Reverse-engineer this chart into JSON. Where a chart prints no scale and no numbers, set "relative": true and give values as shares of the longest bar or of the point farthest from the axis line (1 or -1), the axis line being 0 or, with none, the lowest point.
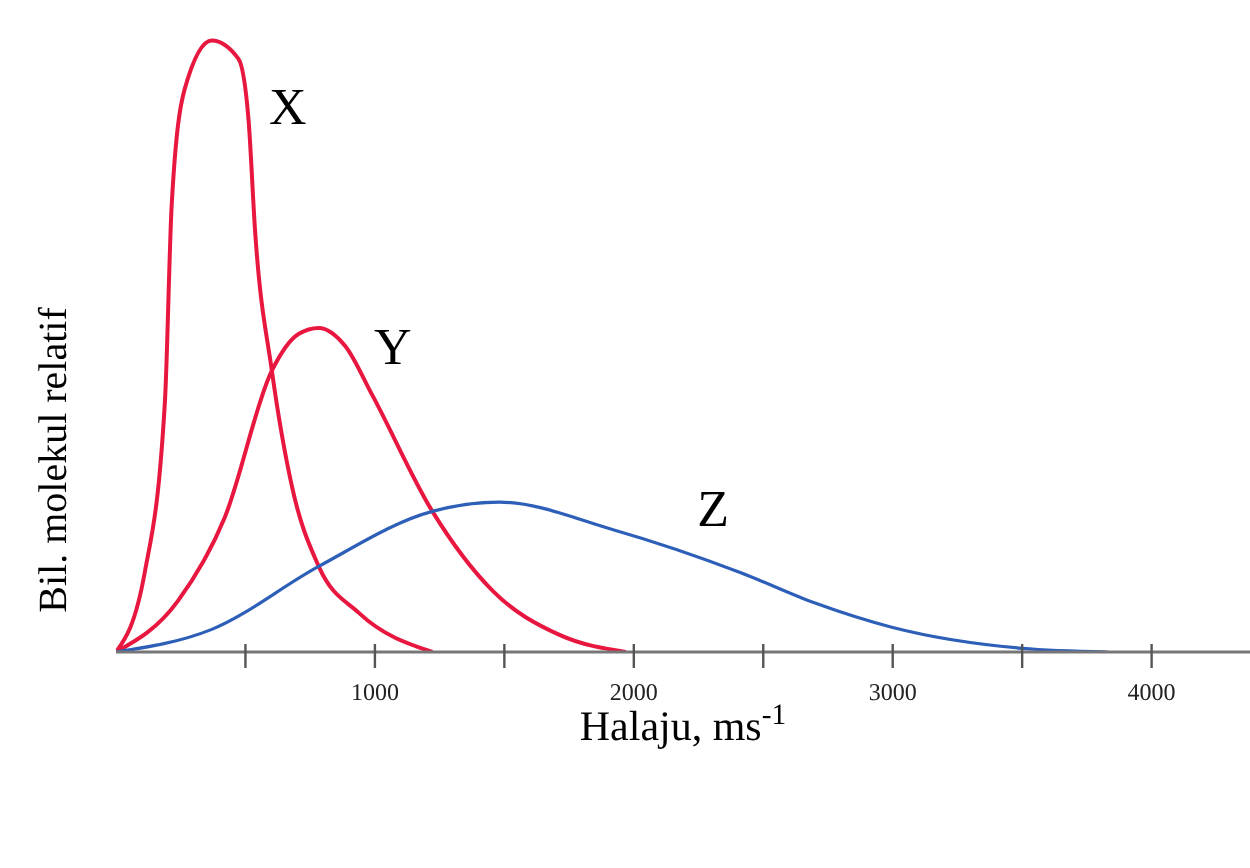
{
  "chart_data": {
    "type": "line",
    "xlabel": "Halaju, ms$^{-1}$",
    "ylabel": "Bil. molekul relatif",
    "relative": true,
    "xlim": [
      0,
      4380
    ],
    "xticks": [
      {
        "value": 500,
        "label": null
      },
      1000,
      {
        "value": 1500,
        "label": null
      },
      2000,
      {
        "value": 2500,
        "label": null
      },
      3000,
      {
        "value": 3500,
        "label": null
      },
      4000
    ],
    "marker": "none",
    "line_style": "solid",
    "series": [
      {
        "name": "X",
        "color": "#e8173f",
        "x": [
          0,
          111,
          189,
          215,
          265,
          370,
          473,
          512,
          537,
          602,
          680,
          783,
          938,
          1222
        ],
        "values": [
          0,
          0.13,
          0.41,
          0.73,
          0.92,
          1.0,
          0.97,
          0.87,
          0.69,
          0.46,
          0.27,
          0.14,
          0.064,
          0
        ]
      },
      {
        "name": "Y",
        "color": "#e8173f",
        "x": [
          0,
          240,
          420,
          602,
          705,
          783,
          886,
          990,
          1222,
          1455,
          1713,
          1969
        ],
        "values": [
          0,
          0.084,
          0.22,
          0.46,
          0.52,
          0.53,
          0.5,
          0.42,
          0.23,
          0.1,
          0.028,
          0
        ]
      },
      {
        "name": "Z",
        "color": "#2d5fb8",
        "x": [
          0,
          370,
          783,
          1222,
          1480,
          1920,
          2411,
          2700,
          3000,
          3500,
          3830
        ],
        "values": [
          0,
          0.037,
          0.14,
          0.23,
          0.245,
          0.2,
          0.13,
          0.08,
          0.04,
          0.006,
          0
        ]
      }
    ]
  }
}
